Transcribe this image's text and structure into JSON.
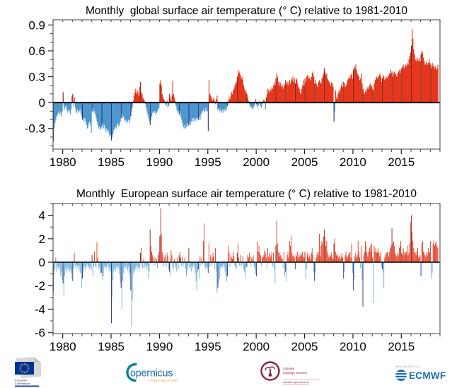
{
  "chart_data": [
    {
      "type": "bar",
      "title": "Monthly  global surface air temperature (° C) relative to 1981-2010",
      "x_domain": [
        1979,
        2019
      ],
      "ylim": [
        -0.54,
        0.96
      ],
      "ytick_values": [
        0.9,
        0.6,
        0.3,
        0,
        -0.3
      ],
      "ytick_labels": [
        "0.9",
        "0.6",
        "0.3",
        "0",
        "-0.3"
      ],
      "ytick_minor_step": 0.1,
      "xtick_years": [
        1980,
        1985,
        1990,
        1995,
        2000,
        2005,
        2010,
        2015
      ],
      "xtick_labels": [
        "1980",
        "1985",
        "1990",
        "1995",
        "2000",
        "2005",
        "2010",
        "2015"
      ],
      "grid": false,
      "legend": "none",
      "colors": {
        "positive": "#e5371c",
        "positive_january": "#8b1d14",
        "negative": "#4d97cf",
        "negative_january": "#20307c"
      },
      "start_month": "1979-01",
      "values": [
        -0.45,
        -0.3,
        -0.24,
        -0.2,
        -0.16,
        -0.14,
        -0.12,
        -0.1,
        -0.14,
        -0.12,
        -0.16,
        -0.1,
        0.12,
        -0.05,
        -0.08,
        -0.04,
        -0.06,
        -0.1,
        -0.12,
        -0.08,
        -0.1,
        -0.14,
        -0.08,
        0.08,
        0.1,
        -0.04,
        0.06,
        -0.06,
        -0.1,
        -0.12,
        -0.08,
        -0.12,
        -0.1,
        -0.08,
        -0.12,
        -0.16,
        -0.2,
        -0.18,
        -0.22,
        -0.18,
        -0.22,
        -0.26,
        -0.3,
        -0.28,
        -0.24,
        -0.22,
        -0.26,
        -0.35,
        -0.1,
        -0.06,
        -0.12,
        -0.1,
        -0.14,
        -0.18,
        -0.22,
        -0.26,
        -0.3,
        -0.28,
        -0.32,
        -0.3,
        -0.28,
        -0.24,
        -0.3,
        -0.26,
        -0.3,
        -0.34,
        -0.3,
        -0.34,
        -0.32,
        -0.36,
        -0.4,
        -0.38,
        -0.44,
        -0.4,
        -0.36,
        -0.32,
        -0.3,
        -0.28,
        -0.3,
        -0.26,
        -0.24,
        -0.28,
        -0.26,
        -0.22,
        -0.18,
        -0.14,
        -0.18,
        -0.16,
        -0.2,
        -0.22,
        -0.2,
        -0.24,
        -0.22,
        -0.2,
        -0.24,
        -0.2,
        -0.16,
        -0.1,
        -0.06,
        0.02,
        0.08,
        0.12,
        0.16,
        0.1,
        0.14,
        0.12,
        0.08,
        0.18,
        0.24,
        0.12,
        0.1,
        0.06,
        0.04,
        0.02,
        -0.02,
        -0.06,
        -0.1,
        -0.14,
        -0.18,
        -0.22,
        -0.26,
        -0.2,
        -0.16,
        -0.12,
        -0.1,
        -0.12,
        -0.1,
        -0.14,
        -0.12,
        -0.1,
        -0.08,
        -0.06,
        0.22,
        0.26,
        0.2,
        0.1,
        0.06,
        0.04,
        0.02,
        -0.02,
        -0.04,
        0.02,
        -0.06,
        -0.04,
        0.1,
        0.06,
        0.02,
        0.08,
        0.25,
        0.1,
        0.06,
        0.02,
        -0.04,
        -0.08,
        -0.12,
        -0.1,
        -0.14,
        -0.1,
        -0.16,
        -0.2,
        -0.24,
        -0.28,
        -0.3,
        -0.26,
        -0.3,
        -0.28,
        -0.24,
        -0.28,
        -0.26,
        -0.22,
        -0.26,
        -0.22,
        -0.18,
        -0.22,
        -0.18,
        -0.22,
        -0.2,
        -0.18,
        -0.22,
        -0.18,
        -0.2,
        -0.16,
        -0.2,
        -0.14,
        -0.12,
        -0.1,
        -0.08,
        -0.12,
        -0.1,
        -0.06,
        -0.1,
        -0.1,
        -0.33,
        0.26,
        0.1,
        0.08,
        0.06,
        0.02,
        0.04,
        0.06,
        0.02,
        -0.02,
        0.04,
        0.08,
        -0.08,
        -0.06,
        -0.1,
        -0.08,
        -0.12,
        -0.1,
        -0.08,
        -0.12,
        -0.08,
        -0.1,
        -0.06,
        -0.08,
        -0.04,
        0.02,
        0.06,
        0.04,
        0.08,
        0.12,
        0.1,
        0.14,
        0.16,
        0.2,
        0.22,
        0.24,
        0.3,
        0.38,
        0.34,
        0.36,
        0.32,
        0.28,
        0.3,
        0.26,
        0.2,
        0.16,
        0.12,
        0.14,
        0.1,
        0.06,
        0.02,
        -0.02,
        -0.06,
        -0.04,
        -0.06,
        -0.08,
        -0.06,
        -0.04,
        -0.02,
        0.04,
        -0.02,
        -0.06,
        -0.04,
        -0.02,
        0.02,
        -0.04,
        -0.06,
        -0.02,
        0.02,
        0.04,
        0.02,
        -0.08,
        0.06,
        0.1,
        0.16,
        0.14,
        0.12,
        0.16,
        0.14,
        0.18,
        0.16,
        0.2,
        0.24,
        0.2,
        0.28,
        0.34,
        0.3,
        0.24,
        0.2,
        0.24,
        0.22,
        0.18,
        0.2,
        0.16,
        0.22,
        0.2,
        0.26,
        0.22,
        0.24,
        0.2,
        0.24,
        0.26,
        0.22,
        0.28,
        0.26,
        0.3,
        0.24,
        0.28,
        0.22,
        0.26,
        0.28,
        0.22,
        0.18,
        0.16,
        0.12,
        0.1,
        0.16,
        0.2,
        0.26,
        0.2,
        0.28,
        0.24,
        0.3,
        0.32,
        0.28,
        0.3,
        0.28,
        0.26,
        0.3,
        0.34,
        0.36,
        0.3,
        0.22,
        0.26,
        0.22,
        0.2,
        0.18,
        0.24,
        0.26,
        0.24,
        0.22,
        0.28,
        0.3,
        0.34,
        0.4,
        0.36,
        0.32,
        0.34,
        0.28,
        0.26,
        0.24,
        0.22,
        0.2,
        0.24,
        0.22,
        0.18,
        -0.22,
        -0.1,
        0.14,
        0.06,
        0.04,
        0.1,
        0.14,
        0.12,
        0.16,
        0.2,
        0.24,
        0.18,
        0.24,
        0.22,
        0.18,
        0.2,
        0.22,
        0.26,
        0.28,
        0.3,
        0.28,
        0.32,
        0.34,
        0.28,
        0.38,
        0.42,
        0.4,
        0.44,
        0.38,
        0.34,
        0.32,
        0.3,
        0.26,
        0.28,
        0.34,
        0.22,
        0.16,
        0.12,
        0.1,
        0.14,
        0.12,
        0.16,
        0.18,
        0.16,
        0.2,
        0.22,
        0.18,
        0.2,
        0.16,
        0.14,
        0.22,
        0.26,
        0.28,
        0.3,
        0.28,
        0.3,
        0.32,
        0.34,
        0.3,
        0.24,
        0.28,
        0.32,
        0.3,
        0.26,
        0.28,
        0.3,
        0.28,
        0.3,
        0.32,
        0.34,
        0.38,
        0.34,
        0.36,
        0.3,
        0.34,
        0.36,
        0.34,
        0.32,
        0.3,
        0.34,
        0.36,
        0.38,
        0.34,
        0.38,
        0.4,
        0.42,
        0.44,
        0.4,
        0.42,
        0.44,
        0.42,
        0.46,
        0.44,
        0.5,
        0.54,
        0.58,
        0.66,
        0.85,
        0.74,
        0.62,
        0.56,
        0.5,
        0.48,
        0.52,
        0.5,
        0.48,
        0.52,
        0.48,
        0.56,
        0.6,
        0.58,
        0.52,
        0.48,
        0.44,
        0.46,
        0.48,
        0.44,
        0.46,
        0.5,
        0.46,
        0.44,
        0.4,
        0.46,
        0.42,
        0.44,
        0.4,
        0.42,
        0.38,
        0.4,
        0.44
      ]
    },
    {
      "type": "bar",
      "title": "Monthly  European surface air temperature (° C) relative to 1981-2010",
      "x_domain": [
        1979,
        2019
      ],
      "ylim": [
        -6.08,
        5.0
      ],
      "ytick_values": [
        4,
        2,
        0,
        -2,
        -4,
        -6
      ],
      "ytick_labels": [
        "4",
        "2",
        "0",
        "-2",
        "-4",
        "-6"
      ],
      "ytick_minor_step": 1,
      "xtick_years": [
        1980,
        1985,
        1990,
        1995,
        2000,
        2005,
        2010,
        2015
      ],
      "xtick_labels": [
        "1980",
        "1985",
        "1990",
        "1995",
        "2000",
        "2005",
        "2010",
        "2015"
      ],
      "grid": false,
      "legend": "none",
      "colors": {
        "positive": "#e5371c",
        "positive_january": "#8b1d14",
        "negative": "#6aaede",
        "negative_january": "#20307c"
      },
      "start_month": "1979-01",
      "values": [
        -2.6,
        -1.0,
        -0.6,
        0.4,
        -0.8,
        -0.4,
        -0.6,
        -0.3,
        -0.5,
        -1.2,
        -0.8,
        -1.5,
        -1.8,
        -2.8,
        -1.2,
        -0.6,
        -0.9,
        -0.4,
        -0.7,
        -0.5,
        -0.8,
        -0.6,
        -1.4,
        -0.9,
        -1.6,
        -0.5,
        0.8,
        -0.3,
        -0.6,
        -0.2,
        -0.4,
        -0.6,
        -0.3,
        -0.8,
        -1.0,
        -2.2,
        -1.4,
        -0.8,
        -0.5,
        -0.3,
        -0.7,
        -0.4,
        -0.2,
        -0.5,
        -0.3,
        -0.6,
        -0.4,
        -0.7,
        0.6,
        -1.2,
        -0.4,
        0.9,
        -0.3,
        -0.5,
        1.7,
        0.4,
        -0.6,
        -0.4,
        -0.8,
        -1.1,
        -0.9,
        -1.5,
        -1.2,
        -0.4,
        -0.6,
        -0.3,
        -0.5,
        -0.2,
        -0.4,
        -0.7,
        -0.5,
        -0.8,
        -5.2,
        -3.0,
        -1.5,
        -0.8,
        -0.5,
        -0.7,
        -0.4,
        -0.6,
        -0.3,
        -0.5,
        -1.0,
        -1.8,
        -2.2,
        -4.0,
        -1.6,
        -0.9,
        -0.4,
        -0.6,
        -0.3,
        -0.5,
        -0.7,
        -0.4,
        -1.2,
        -0.9,
        -2.4,
        -5.5,
        -3.2,
        -1.0,
        -0.6,
        -0.8,
        -0.5,
        -0.3,
        -0.6,
        -0.4,
        -0.8,
        -0.5,
        0.8,
        1.2,
        -0.4,
        -0.6,
        0.3,
        -0.5,
        -0.2,
        -0.4,
        -0.6,
        -0.3,
        -1.4,
        -0.8,
        2.8,
        1.4,
        0.9,
        0.6,
        0.4,
        -0.3,
        0.4,
        -0.2,
        0.3,
        -0.5,
        0.6,
        0.9,
        2.2,
        4.6,
        2.4,
        0.9,
        0.6,
        -0.3,
        0.4,
        0.6,
        -0.4,
        0.8,
        0.5,
        -0.6,
        -0.8,
        -1.2,
        1.0,
        0.6,
        -0.4,
        -0.6,
        0.3,
        -0.2,
        -0.5,
        -0.8,
        0.4,
        -0.6,
        0.6,
        0.9,
        0.4,
        -0.3,
        0.5,
        -0.4,
        -0.2,
        0.4,
        -0.6,
        -1.2,
        -0.8,
        -0.4,
        1.2,
        -0.6,
        -0.4,
        -0.8,
        -0.3,
        -0.5,
        -0.2,
        -0.4,
        -0.9,
        -1.6,
        -2.4,
        -0.8,
        -0.6,
        -1.4,
        0.5,
        -0.3,
        0.4,
        -0.2,
        1.8,
        3.3,
        -0.4,
        -0.6,
        -0.3,
        -0.5,
        -0.9,
        1.6,
        -0.4,
        0.6,
        -0.3,
        0.4,
        0.8,
        0.5,
        -0.6,
        1.2,
        -0.8,
        -2.6,
        -2.2,
        -1.8,
        -1.4,
        -0.6,
        -0.4,
        -0.3,
        -0.5,
        -0.2,
        -0.4,
        -0.8,
        -1.2,
        -1.6,
        -1.2,
        1.4,
        0.8,
        -0.4,
        0.6,
        0.4,
        0.3,
        0.9,
        0.5,
        -0.3,
        -0.4,
        -0.6,
        0.8,
        1.6,
        0.4,
        -0.3,
        0.6,
        -0.4,
        -0.2,
        0.5,
        -0.6,
        -0.8,
        -1.4,
        -0.5,
        -0.4,
        0.6,
        0.4,
        0.8,
        0.5,
        -0.3,
        0.4,
        0.2,
        0.6,
        -0.4,
        -0.6,
        -1.0,
        -1.2,
        1.8,
        0.9,
        1.4,
        0.8,
        0.6,
        -0.3,
        0.5,
        0.4,
        0.6,
        1.0,
        0.8,
        0.4,
        -0.6,
        1.2,
        0.5,
        0.8,
        0.4,
        0.6,
        0.9,
        -0.4,
        0.8,
        -0.6,
        -1.8,
        1.4,
        3.5,
        1.6,
        0.9,
        0.5,
        0.8,
        0.6,
        0.4,
        0.3,
        -0.5,
        0.9,
        -1.2,
        -0.8,
        -1.6,
        0.6,
        0.9,
        0.4,
        1.8,
        1.4,
        2.2,
        0.8,
        0.5,
        0.6,
        0.4,
        -0.6,
        0.8,
        0.5,
        0.9,
        0.4,
        0.6,
        0.5,
        0.8,
        0.6,
        0.9,
        0.5,
        0.4,
        0.9,
        -1.4,
        -0.6,
        0.8,
        0.5,
        0.4,
        0.6,
        0.3,
        0.8,
        1.2,
        0.6,
        -0.8,
        -1.6,
        -0.9,
        0.4,
        0.8,
        0.6,
        0.9,
        2.4,
        0.5,
        1.4,
        1.8,
        1.6,
        2.2,
        2.8,
        2.2,
        1.4,
        1.8,
        0.9,
        0.6,
        0.4,
        0.5,
        0.6,
        0.8,
        0.4,
        0.3,
        1.6,
        2.0,
        0.9,
        0.6,
        0.8,
        0.5,
        0.4,
        0.6,
        0.3,
        0.5,
        0.8,
        0.4,
        -1.4,
        -0.8,
        0.6,
        0.9,
        0.5,
        0.4,
        0.6,
        0.8,
        0.9,
        0.4,
        1.6,
        -0.9,
        -2.4,
        -1.6,
        0.5,
        0.8,
        0.4,
        0.6,
        1.8,
        0.9,
        0.4,
        -0.5,
        1.4,
        -1.5,
        -3.8,
        0.6,
        0.9,
        1.8,
        1.4,
        0.8,
        0.5,
        0.9,
        1.2,
        1.4,
        0.9,
        1.6,
        0.4,
        -3.5,
        1.4,
        0.9,
        1.2,
        0.8,
        0.9,
        1.2,
        0.8,
        0.5,
        0.9,
        -0.4,
        -0.6,
        -0.9,
        -2.2,
        0.4,
        0.6,
        0.8,
        0.9,
        0.8,
        0.5,
        0.9,
        1.2,
        1.4,
        2.9,
        1.6,
        1.8,
        1.4,
        0.8,
        0.6,
        0.5,
        0.8,
        0.6,
        1.2,
        1.4,
        1.8,
        0.8,
        0.6,
        1.2,
        0.9,
        0.6,
        0.8,
        0.9,
        1.4,
        0.6,
        0.8,
        1.6,
        3.4,
        4.0,
        2.6,
        1.8,
        1.2,
        0.9,
        0.8,
        0.6,
        0.9,
        1.2,
        0.4,
        0.6,
        0.5,
        -1.2,
        1.6,
        1.8,
        0.9,
        0.8,
        0.6,
        0.5,
        0.9,
        0.6,
        1.2,
        0.8,
        0.9,
        1.8,
        -1.4,
        -0.9,
        1.6,
        1.9,
        1.4,
        1.6,
        1.8,
        1.4,
        1.2
      ]
    }
  ],
  "footer": {
    "ec": {
      "line1": "European",
      "line2": "Commission"
    },
    "copernicus": {
      "name": "opernicus",
      "tagline": "Europe's eyes on Earth"
    },
    "c3s": {
      "line1": "Climate",
      "line2": "Change Service",
      "url": "climate.copernicus.eu"
    },
    "ecmwf": {
      "implemented_by": "IMPLEMENTED BY",
      "name": "ECMWF"
    }
  }
}
